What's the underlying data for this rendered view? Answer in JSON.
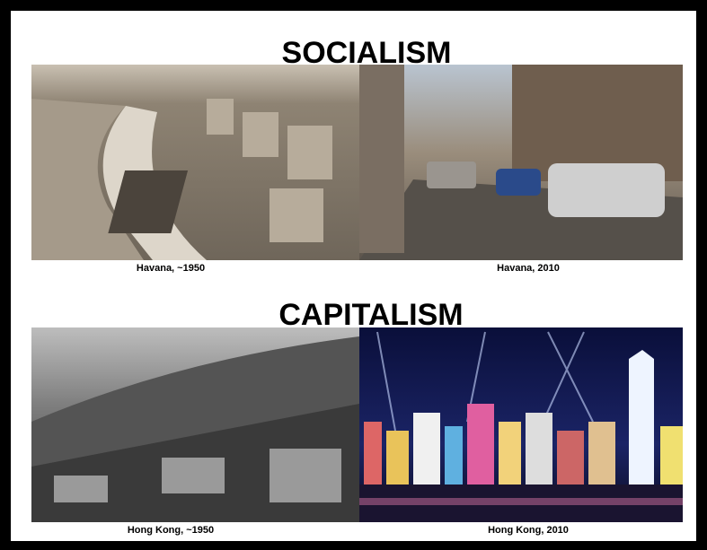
{
  "sections": [
    {
      "title": "SOCIALISM",
      "images": [
        {
          "caption": "Havana, ~1950"
        },
        {
          "caption": "Havana, 2010"
        }
      ]
    },
    {
      "title": "CAPITALISM",
      "images": [
        {
          "caption": "Hong Kong, ~1950"
        },
        {
          "caption": "Hong Kong, 2010"
        }
      ]
    }
  ]
}
